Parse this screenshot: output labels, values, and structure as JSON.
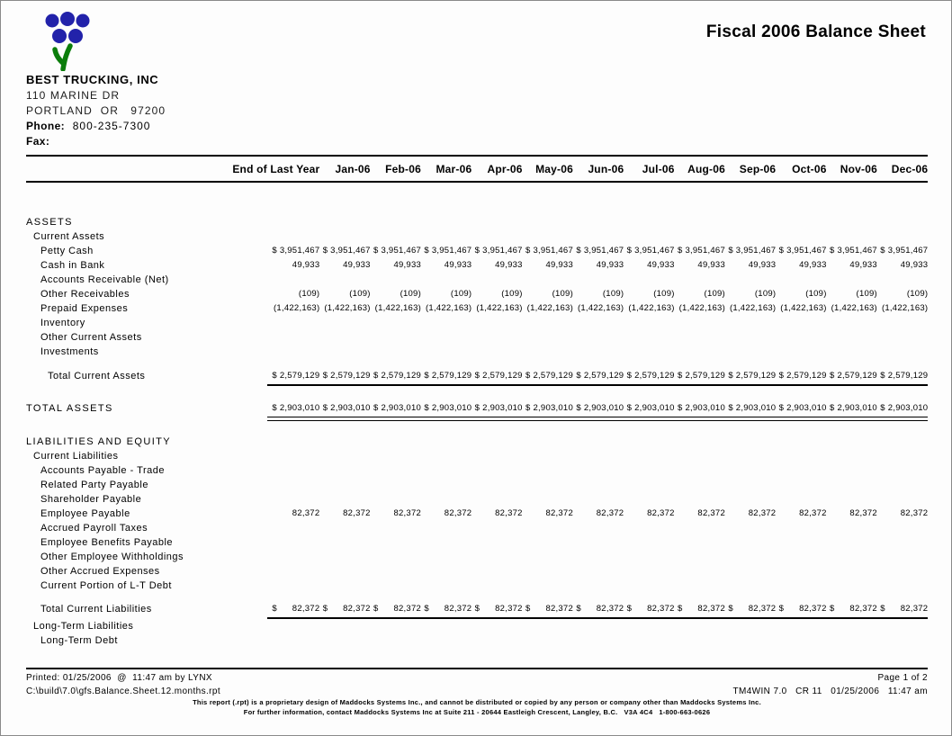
{
  "title": "Fiscal 2006 Balance Sheet",
  "colors": {
    "logo_blue": "#2222aa",
    "logo_green": "#0b7d0b",
    "text": "#000000"
  },
  "company": {
    "name": "BEST TRUCKING, INC",
    "address_line1": "110 MARINE DR",
    "address_line2": "PORTLAND  OR   97200",
    "phone_label": "Phone:",
    "phone_value": "800-235-7300",
    "fax_label": "Fax:",
    "fax_value": ""
  },
  "table": {
    "columns": [
      "End of Last Year",
      "Jan-06",
      "Feb-06",
      "Mar-06",
      "Apr-06",
      "May-06",
      "Jun-06",
      "Jul-06",
      "Aug-06",
      "Sep-06",
      "Oct-06",
      "Nov-06",
      "Dec-06"
    ],
    "rows": [
      {
        "label": "ASSETS",
        "indent": 0,
        "section": true,
        "gap": 36
      },
      {
        "label": "Current Assets",
        "indent": 1
      },
      {
        "label": "Petty Cash",
        "indent": 2,
        "dollar": true,
        "value": "3,951,467"
      },
      {
        "label": "Cash in Bank",
        "indent": 2,
        "value": "49,933"
      },
      {
        "label": "Accounts Receivable (Net)",
        "indent": 2
      },
      {
        "label": "Other Receivables",
        "indent": 2,
        "value": "(109)"
      },
      {
        "label": "Prepaid Expenses",
        "indent": 2,
        "value": "(1,422,163)"
      },
      {
        "label": "Inventory",
        "indent": 2
      },
      {
        "label": "Other Current Assets",
        "indent": 2
      },
      {
        "label": "Investments",
        "indent": 2
      },
      {
        "label": "Total Current Assets",
        "indent": 3,
        "dollar": true,
        "value": "2,579,129",
        "gap": 11,
        "rule": "single"
      },
      {
        "label": "TOTAL ASSETS",
        "indent": 0,
        "section": true,
        "dollar": true,
        "value": "2,903,010",
        "gap": 17,
        "rule": "double"
      },
      {
        "label": "LIABILITIES AND EQUITY",
        "indent": 0,
        "section": true,
        "gap": 15
      },
      {
        "label": "Current Liabilities",
        "indent": 1
      },
      {
        "label": "Accounts Payable - Trade",
        "indent": 2
      },
      {
        "label": "Related Party Payable",
        "indent": 2
      },
      {
        "label": "Shareholder Payable",
        "indent": 2
      },
      {
        "label": "Employee Payable",
        "indent": 2,
        "value": "82,372"
      },
      {
        "label": "Accrued Payroll Taxes",
        "indent": 2
      },
      {
        "label": "Employee Benefits Payable",
        "indent": 2
      },
      {
        "label": "Other Employee Withholdings",
        "indent": 2
      },
      {
        "label": "Other Accrued Expenses",
        "indent": 2
      },
      {
        "label": "Current Portion of L-T Debt",
        "indent": 2
      },
      {
        "label": "Total Current Liabilities",
        "indent": 2,
        "dollar": true,
        "value": "82,372",
        "gap": 10,
        "rule": "single"
      },
      {
        "label": "Long-Term Liabilities",
        "indent": 1
      },
      {
        "label": "Long-Term Debt",
        "indent": 2
      }
    ]
  },
  "footer": {
    "printed_line": "Printed: 01/25/2006  @  11:47 am by LYNX",
    "page_info": "Page 1 of 2",
    "file_path": "C:\\build\\7.0\\gfs.Balance.Sheet.12.months.rpt",
    "system_info": "TM4WIN 7.0   CR 11   01/25/2006   11:47 am",
    "disclaimer_line1": "This report (.rpt) is a proprietary design of Maddocks Systems Inc., and cannot be distributed or copied by any person or company other than Maddocks Systems Inc.",
    "disclaimer_line2": "For further information, contact Maddocks Systems Inc at Suite 211 - 20644 Eastleigh Crescent, Langley, B.C.   V3A 4C4   1-800-663-0626"
  }
}
